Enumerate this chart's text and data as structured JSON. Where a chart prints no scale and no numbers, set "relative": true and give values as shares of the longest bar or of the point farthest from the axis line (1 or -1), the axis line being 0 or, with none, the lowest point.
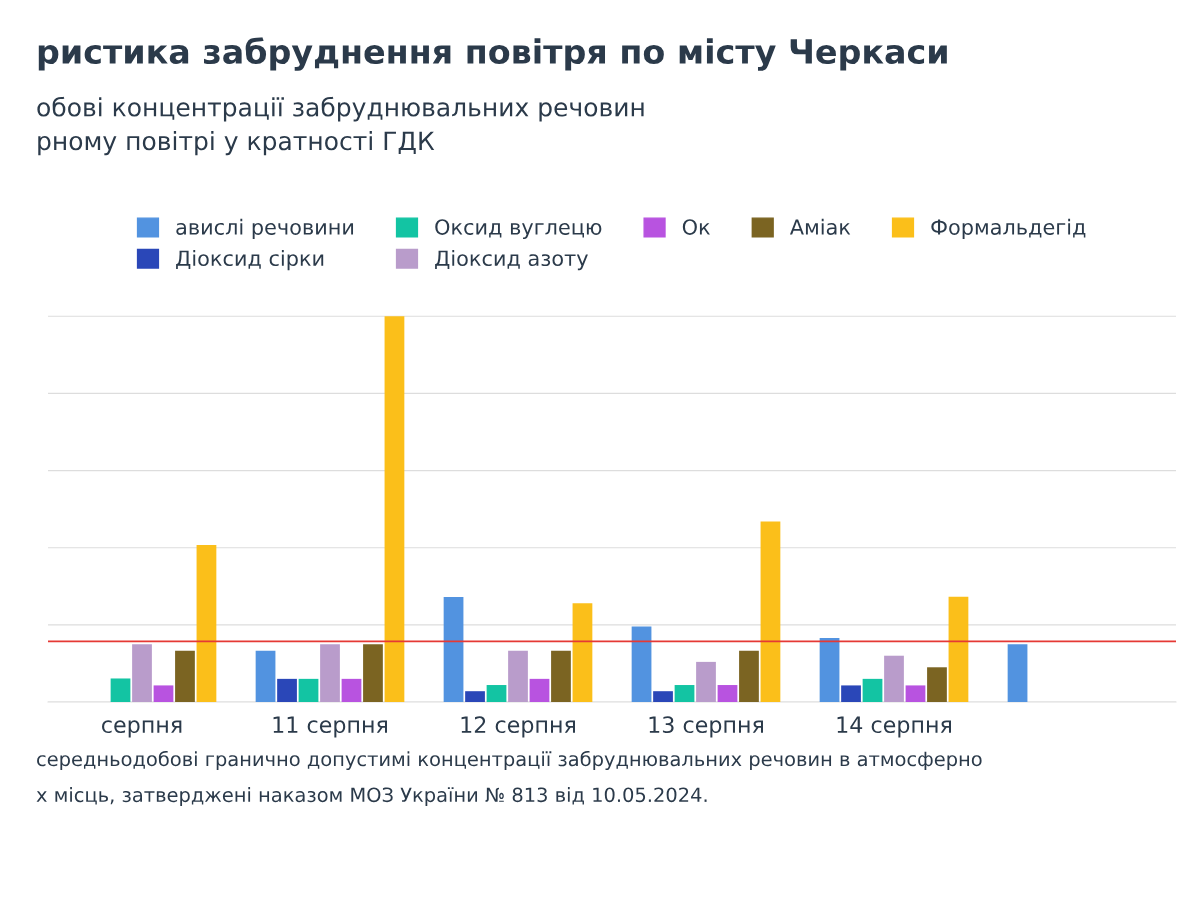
{
  "chart_data": {
    "type": "bar",
    "title": "ристика забруднення повітря по місту Черкаси",
    "subtitle": "обові концентрації забруднювальних речовин\nрному повітрі у кратності ГДК",
    "categories": [
      "серпня",
      "11 серпня",
      "12 серпня",
      "13 серпня",
      "14 серпня",
      null
    ],
    "relative": true,
    "series": [
      {
        "name": "авислі речовини",
        "color": "#5293e0",
        "values": [
          null,
          0.133,
          0.272,
          0.196,
          0.166,
          0.15
        ]
      },
      {
        "name": "Діоксид сірки",
        "color": "#2a47b8",
        "values": [
          null,
          0.06,
          0.028,
          0.028,
          0.043,
          null
        ]
      },
      {
        "name": "Оксид вуглецю",
        "color": "#13c4a3",
        "values": [
          0.061,
          0.06,
          0.044,
          0.044,
          0.06,
          null
        ]
      },
      {
        "name": "Діоксид азоту",
        "color": "#b99ccb",
        "values": [
          0.15,
          0.15,
          0.133,
          0.104,
          0.12,
          null
        ]
      },
      {
        "name": "Ок",
        "color": "#b853e0",
        "values": [
          0.043,
          0.06,
          0.06,
          0.044,
          0.043,
          null
        ]
      },
      {
        "name": "Аміак",
        "color": "#7b6422",
        "values": [
          0.133,
          0.15,
          0.133,
          0.133,
          0.09,
          null
        ]
      },
      {
        "name": "Формальдегід",
        "color": "#fbbf1a",
        "values": [
          0.407,
          1.0,
          0.256,
          0.468,
          0.273,
          null
        ]
      }
    ],
    "ref_lines": [
      {
        "axis": "y",
        "value": 0.157,
        "color": "#e53935"
      }
    ],
    "grid": "y",
    "legend": "top",
    "annotations": [
      "середньодобові гранично допустимі концентрації забруднювальних речовин в атмосферно",
      "х місць, затверджені наказом МОЗ України № 813 від 10.05.2024."
    ]
  }
}
